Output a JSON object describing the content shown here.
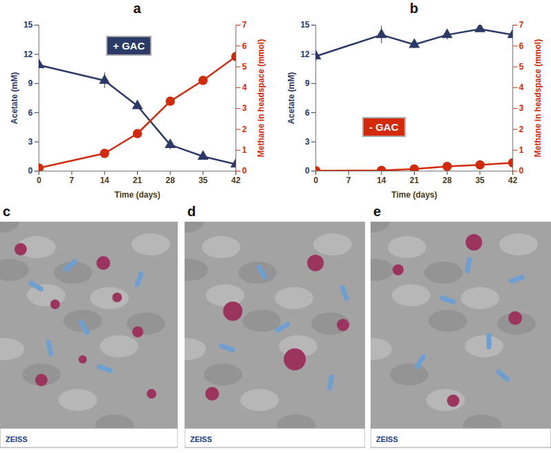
{
  "chart_data": [
    {
      "type": "line",
      "panel": "a",
      "annotation": "+ GAC",
      "x": [
        0,
        14,
        21,
        28,
        35,
        42
      ],
      "xlim": [
        0,
        42
      ],
      "xticks": [
        0,
        7,
        14,
        21,
        28,
        35,
        42
      ],
      "x_label": "Time (days)",
      "y_label": "Acetate (mM)",
      "y2_label": "Methane in headspace (mmol)",
      "ylim": [
        0,
        15
      ],
      "yticks": [
        0,
        3,
        6,
        9,
        12,
        15
      ],
      "y2lim": [
        0,
        7
      ],
      "y2ticks": [
        0,
        1,
        2,
        3,
        4,
        5,
        6,
        7
      ],
      "series": [
        {
          "color": "#2b3a67",
          "marker": "triangle",
          "line_style": "solid",
          "axis": "y",
          "values": [
            10.9,
            9.3,
            6.7,
            2.7,
            1.5,
            0.7
          ],
          "errors": [
            0.3,
            0.8,
            0.3,
            0.5,
            0.2,
            0.8
          ]
        },
        {
          "color": "#d42a0c",
          "marker": "circle",
          "line_style": "solid",
          "axis": "y2",
          "values": [
            0.15,
            0.85,
            1.8,
            3.35,
            4.35,
            5.5
          ],
          "errors": [
            0.05,
            0.05,
            0.08,
            0.15,
            0.2,
            0.3
          ]
        }
      ]
    },
    {
      "type": "line",
      "panel": "b",
      "annotation": "- GAC",
      "x": [
        0,
        14,
        21,
        28,
        35,
        42
      ],
      "xlim": [
        0,
        42
      ],
      "xticks": [
        0,
        7,
        14,
        21,
        28,
        35,
        42
      ],
      "x_label": "Time (days)",
      "y_label": "Acetate (mM)",
      "y2_label": "Methane in headspace (mmol)",
      "ylim": [
        0,
        15
      ],
      "yticks": [
        0,
        3,
        6,
        9,
        12,
        15
      ],
      "y2lim": [
        0,
        7
      ],
      "y2ticks": [
        0,
        1,
        2,
        3,
        4,
        5,
        6,
        7
      ],
      "series": [
        {
          "color": "#2b3a67",
          "marker": "triangle",
          "line_style": "solid",
          "axis": "y",
          "values": [
            11.8,
            14.0,
            13.0,
            14.0,
            14.6,
            14.0
          ],
          "errors": [
            0.6,
            0.9,
            0.4,
            0.5,
            0.2,
            0.6
          ]
        },
        {
          "color": "#d42a0c",
          "marker": "circle",
          "line_style": "solid",
          "axis": "y2",
          "values": [
            0.02,
            0.03,
            0.1,
            0.22,
            0.3,
            0.4
          ],
          "errors": [
            0.0,
            0.02,
            0.05,
            0.08,
            0.2,
            0.35
          ]
        }
      ]
    }
  ],
  "images": [
    {
      "panel": "c",
      "type": "micrograph",
      "brand": "ZEISS"
    },
    {
      "panel": "d",
      "type": "micrograph",
      "brand": "ZEISS"
    },
    {
      "panel": "e",
      "type": "micrograph",
      "brand": "ZEISS"
    }
  ]
}
